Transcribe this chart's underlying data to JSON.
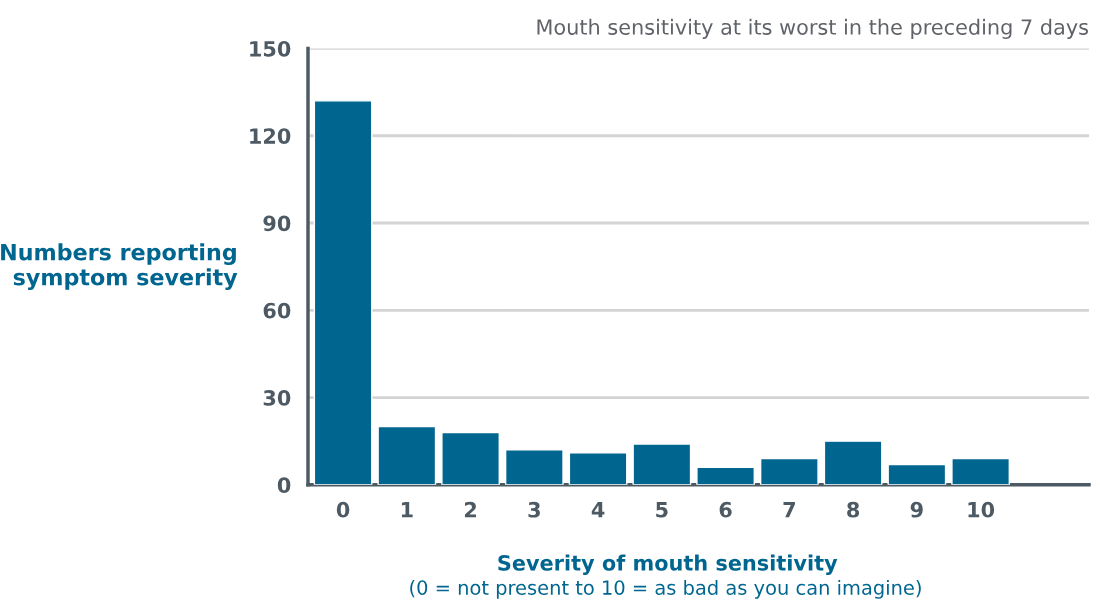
{
  "chart_data": {
    "type": "bar",
    "title": "Mouth sensitivity at its worst in the preceding 7 days",
    "xlabel": "Severity of mouth sensitivity",
    "ylabel": "Numbers reporting\nsymptom severity",
    "annotations": [
      "(0 = not present to 10 = as bad as you can imagine)"
    ],
    "categories": [
      "0",
      "1",
      "2",
      "3",
      "4",
      "5",
      "6",
      "7",
      "8",
      "9",
      "10"
    ],
    "values": [
      132,
      20,
      18,
      12,
      11,
      14,
      6,
      9,
      15,
      7,
      9
    ],
    "color": "#006690",
    "ylim": [
      0,
      150
    ],
    "yticks": [
      0,
      30,
      60,
      90,
      120,
      150
    ],
    "grid": "y"
  }
}
